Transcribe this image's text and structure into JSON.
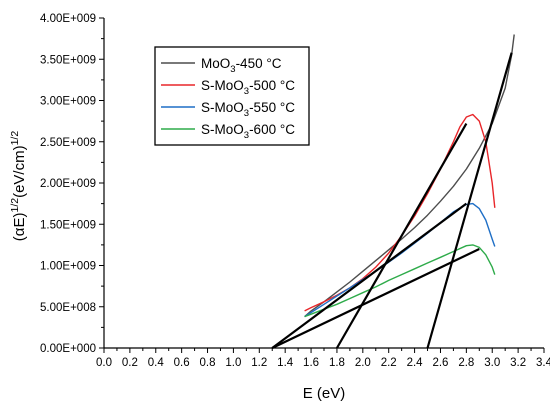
{
  "chart_data": {
    "type": "line",
    "title": "",
    "xlabel": "E (eV)",
    "ylabel": {
      "prefix": "(αE)",
      "prefix_sup": "1/2",
      "middle": "(eV/cm)",
      "middle_sup": "1/2"
    },
    "xlim": [
      0.0,
      3.4
    ],
    "ylim": [
      0,
      4000000000
    ],
    "x_ticks": [
      "0.0",
      "0.2",
      "0.4",
      "0.6",
      "0.8",
      "1.0",
      "1.2",
      "1.4",
      "1.6",
      "1.8",
      "2.0",
      "2.2",
      "2.4",
      "2.6",
      "2.8",
      "3.0",
      "3.2",
      "3.4"
    ],
    "y_ticks": [
      "0.00E+000",
      "5.00E+008",
      "1.00E+009",
      "1.50E+009",
      "2.00E+009",
      "2.50E+009",
      "3.00E+009",
      "3.50E+009",
      "4.00E+009"
    ],
    "legend_position": "top-left",
    "series": [
      {
        "name": "MoO3-450 °C",
        "label_parts": [
          "MoO",
          "3",
          "-450 °C"
        ],
        "color": "#4d4d4d",
        "x": [
          1.55,
          1.6,
          1.7,
          1.8,
          1.9,
          2.0,
          2.1,
          2.2,
          2.3,
          2.4,
          2.5,
          2.6,
          2.7,
          2.8,
          2.9,
          3.0,
          3.1,
          3.15,
          3.17
        ],
        "y": [
          380000000,
          450000000,
          560000000,
          680000000,
          800000000,
          930000000,
          1060000000,
          1190000000,
          1320000000,
          1460000000,
          1610000000,
          1780000000,
          1960000000,
          2170000000,
          2420000000,
          2720000000,
          3150000000,
          3550000000,
          3800000000
        ]
      },
      {
        "name": "S-MoO3-500 °C",
        "label_parts": [
          "S-MoO",
          "3",
          "-500 °C"
        ],
        "color": "#e8262a",
        "x": [
          1.55,
          1.6,
          1.7,
          1.8,
          1.9,
          2.0,
          2.1,
          2.2,
          2.3,
          2.4,
          2.5,
          2.6,
          2.7,
          2.75,
          2.8,
          2.85,
          2.9,
          2.95,
          3.0,
          3.02
        ],
        "y": [
          450000000,
          490000000,
          560000000,
          640000000,
          730000000,
          840000000,
          980000000,
          1150000000,
          1360000000,
          1600000000,
          1870000000,
          2170000000,
          2500000000,
          2680000000,
          2800000000,
          2830000000,
          2750000000,
          2500000000,
          2000000000,
          1700000000
        ]
      },
      {
        "name": "S-MoO3-550 °C",
        "label_parts": [
          "S-MoO",
          "3",
          "-550 °C"
        ],
        "color": "#1f6fc6",
        "x": [
          1.55,
          1.6,
          1.7,
          1.8,
          1.9,
          2.0,
          2.1,
          2.2,
          2.3,
          2.4,
          2.5,
          2.6,
          2.7,
          2.8,
          2.85,
          2.9,
          2.95,
          3.0,
          3.02
        ],
        "y": [
          380000000,
          430000000,
          530000000,
          630000000,
          730000000,
          830000000,
          930000000,
          1040000000,
          1150000000,
          1270000000,
          1390000000,
          1520000000,
          1650000000,
          1740000000,
          1750000000,
          1690000000,
          1550000000,
          1320000000,
          1230000000
        ]
      },
      {
        "name": "S-MoO3-600 °C",
        "label_parts": [
          "S-MoO",
          "3",
          "-600 °C"
        ],
        "color": "#2eab4a",
        "x": [
          1.55,
          1.6,
          1.7,
          1.8,
          1.9,
          2.0,
          2.1,
          2.2,
          2.3,
          2.4,
          2.5,
          2.6,
          2.7,
          2.8,
          2.85,
          2.9,
          2.95,
          3.0,
          3.02
        ],
        "y": [
          380000000,
          410000000,
          470000000,
          530000000,
          600000000,
          670000000,
          740000000,
          820000000,
          890000000,
          960000000,
          1030000000,
          1100000000,
          1170000000,
          1240000000,
          1250000000,
          1220000000,
          1130000000,
          980000000,
          890000000
        ]
      }
    ],
    "tangent_lines": [
      {
        "color": "#000000",
        "x": [
          1.3,
          2.9
        ],
        "y": [
          0,
          1200000000
        ]
      },
      {
        "color": "#000000",
        "x": [
          1.3,
          2.8
        ],
        "y": [
          0,
          1750000000
        ]
      },
      {
        "color": "#000000",
        "x": [
          1.8,
          2.8
        ],
        "y": [
          0,
          2720000000
        ]
      },
      {
        "color": "#000000",
        "x": [
          2.5,
          3.15
        ],
        "y": [
          0,
          3580000000
        ]
      }
    ]
  }
}
